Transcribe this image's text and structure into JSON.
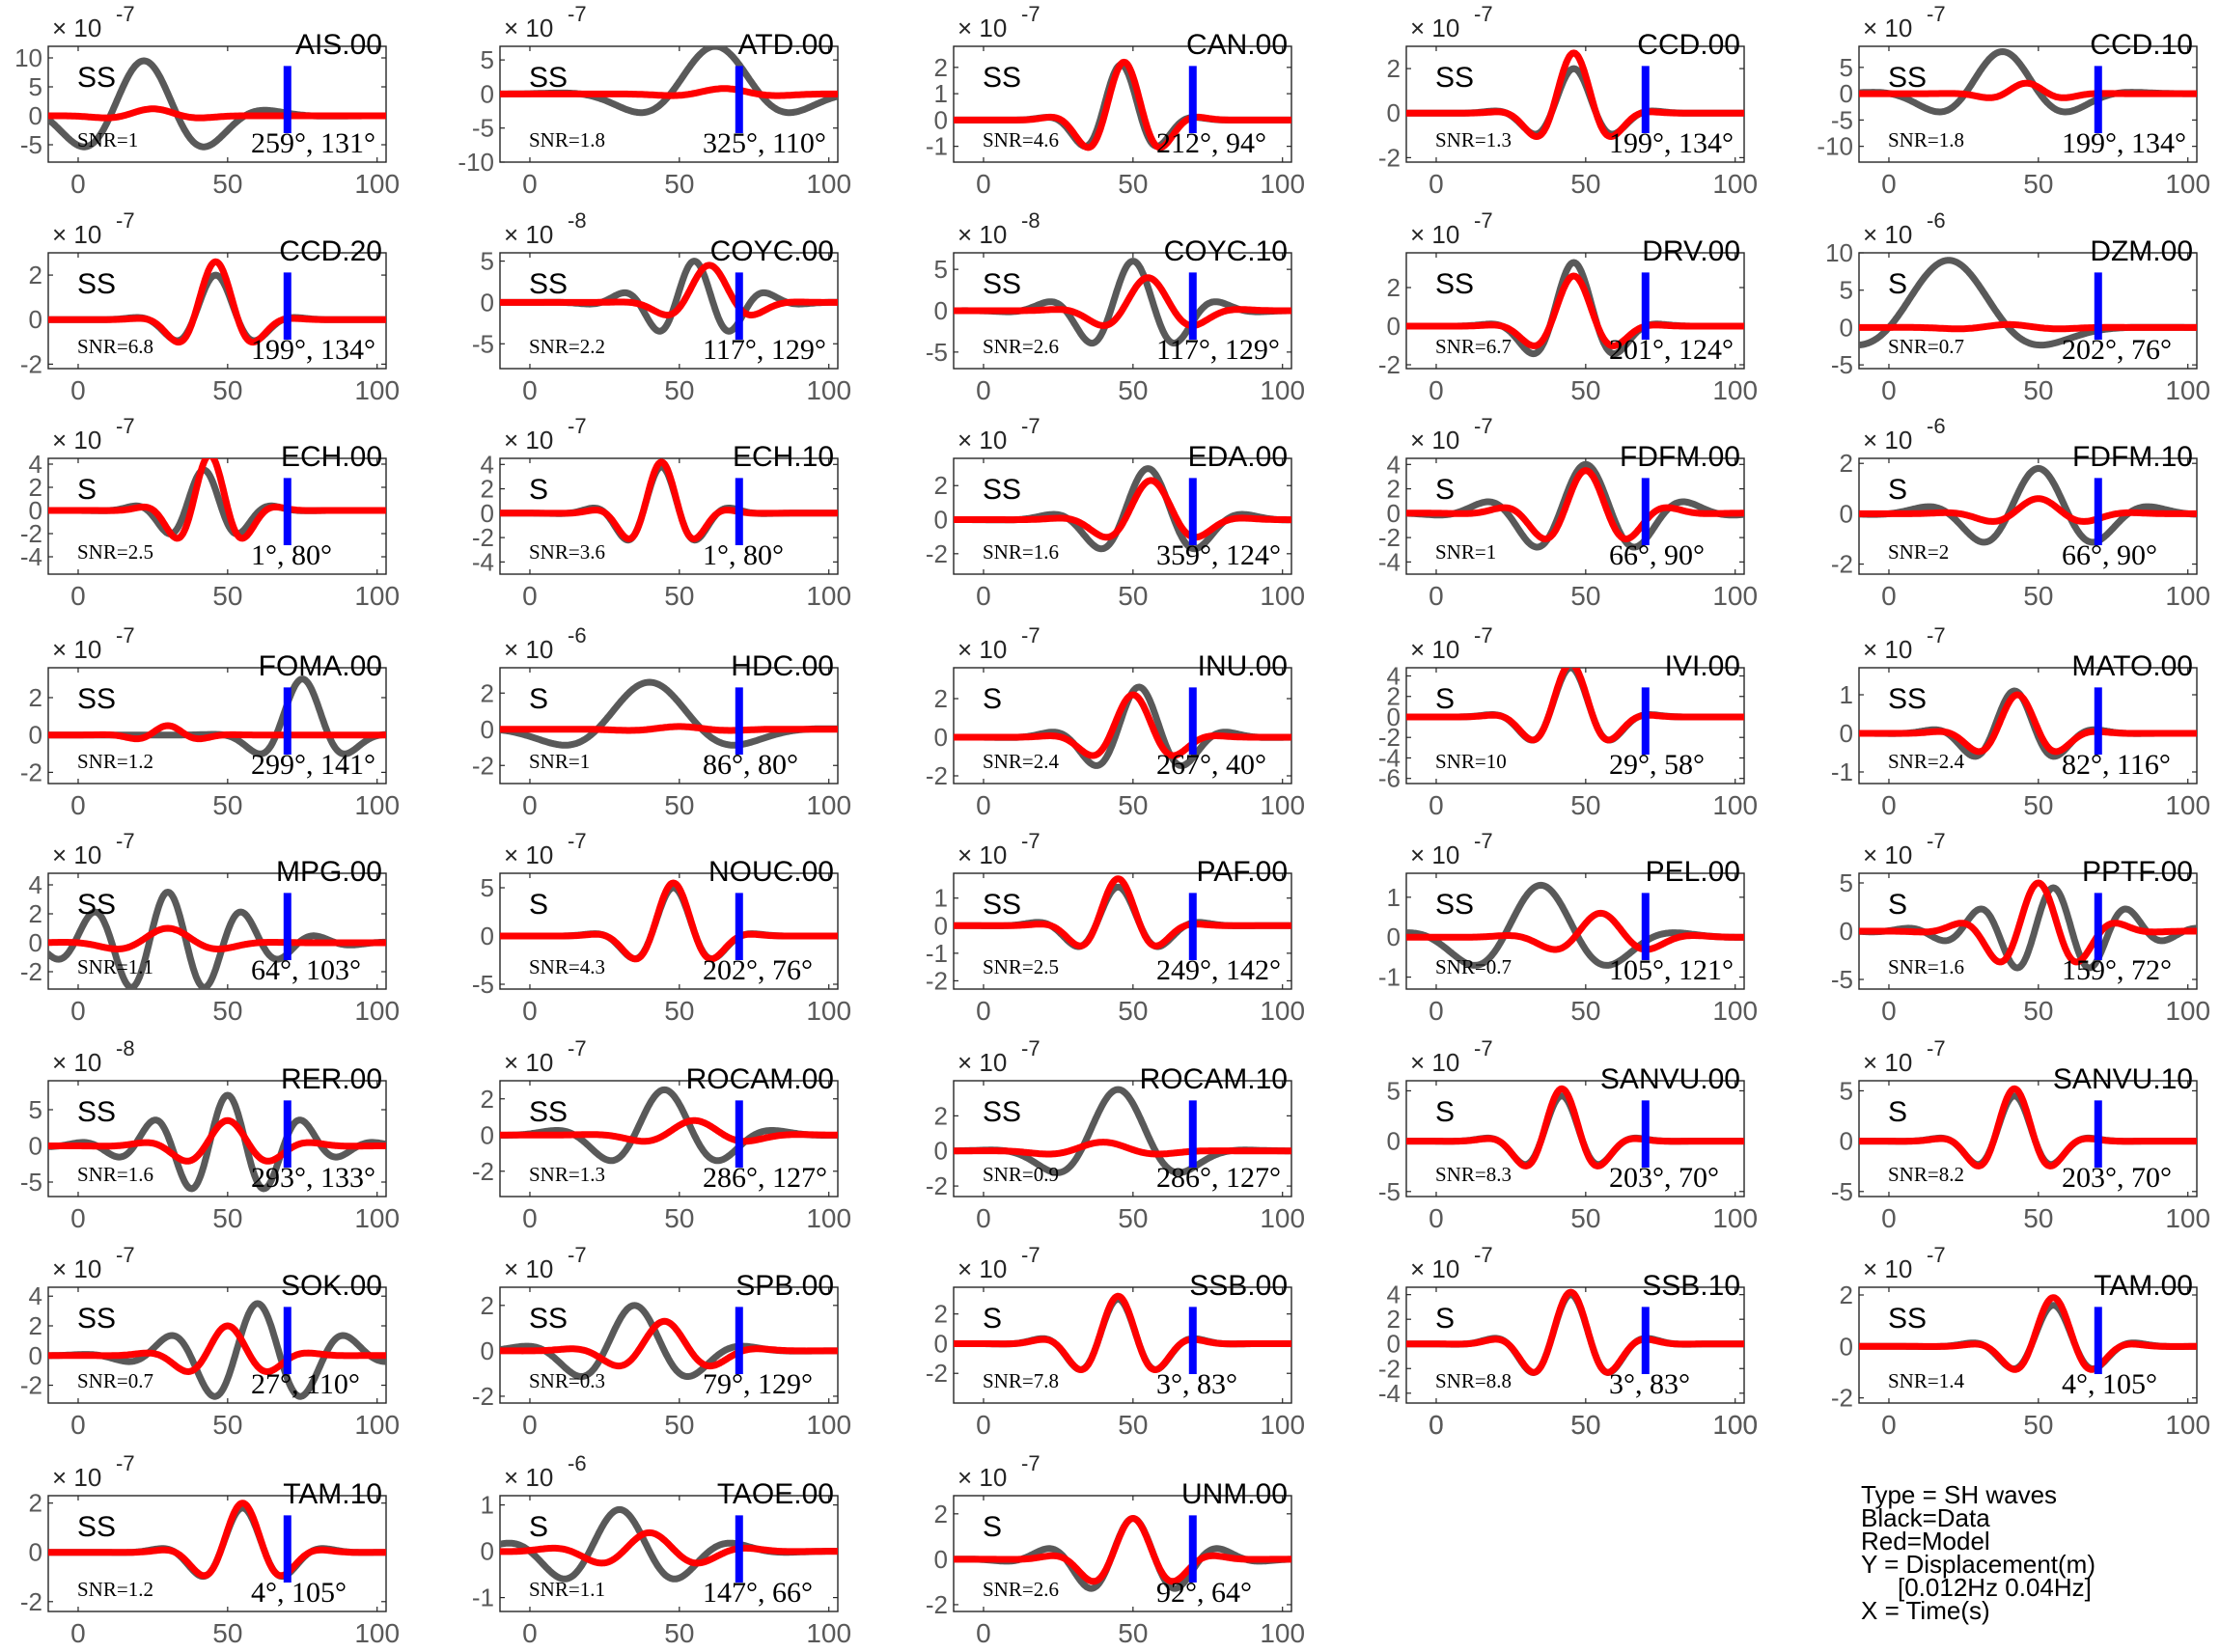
{
  "figure": {
    "x_ticks": [
      0,
      50,
      100
    ],
    "x_range": [
      -10,
      103
    ],
    "colors": {
      "data": "#595959",
      "model": "#ff0000",
      "marker": "#0000ff",
      "axis": "#262626",
      "tick_text": "#595959"
    }
  },
  "legend": {
    "lines": [
      "Type = SH waves",
      "Black=Data",
      "Red=Model",
      "Y = Displacement(m)",
      "[0.012Hz 0.04Hz]",
      "X = Time(s)"
    ]
  },
  "chart_data": [
    {
      "type": "line",
      "station": "AIS.00",
      "phase": "SS",
      "snr": "SNR=1",
      "azimuth": "259°, 131°",
      "scale_exp": "-7",
      "ylim": [
        -8,
        12
      ],
      "yticks": [
        -5,
        0,
        5,
        10
      ],
      "marker_x": 70,
      "data_amp": 9.5,
      "data_center": 22,
      "data_period": 45,
      "data_width": 28,
      "model_amp": 1.2,
      "model_center": 25,
      "model_period": 40,
      "model_width": 16
    },
    {
      "type": "line",
      "station": "ATD.00",
      "phase": "SS",
      "snr": "SNR=1.8",
      "azimuth": "325°, 110°",
      "scale_exp": "-7",
      "ylim": [
        -10,
        7
      ],
      "yticks": [
        -10,
        -5,
        0,
        5
      ],
      "marker_x": 70,
      "data_amp": 7,
      "data_center": 62,
      "data_period": 60,
      "data_width": 28,
      "model_amp": 0.8,
      "model_center": 65,
      "model_period": 45,
      "model_width": 18
    },
    {
      "type": "line",
      "station": "CAN.00",
      "phase": "SS",
      "snr": "SNR=4.6",
      "azimuth": "212°, 94°",
      "scale_exp": "-7",
      "ylim": [
        -1.6,
        2.8
      ],
      "yticks": [
        -1,
        0,
        1,
        2
      ],
      "marker_x": 70,
      "data_amp": 2.1,
      "data_center": 46,
      "data_period": 28,
      "data_width": 15,
      "model_amp": 2.2,
      "model_center": 47,
      "model_period": 28,
      "model_width": 15
    },
    {
      "type": "line",
      "station": "CCD.00",
      "phase": "SS",
      "snr": "SNR=1.3",
      "azimuth": "199°, 134°",
      "scale_exp": "-7",
      "ylim": [
        -2.2,
        3
      ],
      "yticks": [
        -2,
        0,
        2
      ],
      "marker_x": 70,
      "data_amp": 2,
      "data_center": 46,
      "data_period": 30,
      "data_width": 16,
      "model_amp": 2.7,
      "model_center": 46,
      "model_period": 30,
      "model_width": 14
    },
    {
      "type": "line",
      "station": "CCD.10",
      "phase": "SS",
      "snr": "SNR=1.8",
      "azimuth": "199°, 134°",
      "scale_exp": "-7",
      "ylim": [
        -13,
        9
      ],
      "yticks": [
        -10,
        -5,
        0,
        5
      ],
      "marker_x": 70,
      "data_amp": 8,
      "data_center": 38,
      "data_period": 50,
      "data_width": 25,
      "model_amp": 2,
      "model_center": 46,
      "model_period": 30,
      "model_width": 14
    },
    {
      "type": "line",
      "station": "CCD.20",
      "phase": "SS",
      "snr": "SNR=6.8",
      "azimuth": "199°, 134°",
      "scale_exp": "-7",
      "ylim": [
        -2.2,
        3
      ],
      "yticks": [
        -2,
        0,
        2
      ],
      "marker_x": 70,
      "data_amp": 2,
      "data_center": 46,
      "data_period": 30,
      "data_width": 16,
      "model_amp": 2.6,
      "model_center": 46,
      "model_period": 30,
      "model_width": 14
    },
    {
      "type": "line",
      "station": "COYC.00",
      "phase": "SS",
      "snr": "SNR=2.2",
      "azimuth": "117°, 129°",
      "scale_exp": "-8",
      "ylim": [
        -8,
        6
      ],
      "yticks": [
        -5,
        0,
        5
      ],
      "marker_x": 70,
      "data_amp": 5,
      "data_center": 55,
      "data_period": 25,
      "data_width": 20,
      "model_amp": 4.5,
      "model_center": 60,
      "model_period": 35,
      "model_width": 15
    },
    {
      "type": "line",
      "station": "COYC.10",
      "phase": "SS",
      "snr": "SNR=2.6",
      "azimuth": "117°, 129°",
      "scale_exp": "-8",
      "ylim": [
        -7,
        7
      ],
      "yticks": [
        -5,
        0,
        5
      ],
      "marker_x": 70,
      "data_amp": 6,
      "data_center": 50,
      "data_period": 30,
      "data_width": 22,
      "model_amp": 4,
      "model_center": 55,
      "model_period": 35,
      "model_width": 18
    },
    {
      "type": "line",
      "station": "DRV.00",
      "phase": "SS",
      "snr": "SNR=6.7",
      "azimuth": "201°, 124°",
      "scale_exp": "-7",
      "ylim": [
        -2.2,
        3.8
      ],
      "yticks": [
        -2,
        0,
        2
      ],
      "marker_x": 70,
      "data_amp": 3.3,
      "data_center": 46,
      "data_period": 32,
      "data_width": 16,
      "model_amp": 2.6,
      "model_center": 46,
      "model_period": 32,
      "model_width": 15
    },
    {
      "type": "line",
      "station": "DZM.00",
      "phase": "S",
      "snr": "SNR=0.7",
      "azimuth": "202°, 76°",
      "scale_exp": "-6",
      "ylim": [
        -5.5,
        10
      ],
      "yticks": [
        -5,
        0,
        5,
        10
      ],
      "marker_x": 70,
      "data_amp": 9,
      "data_center": 20,
      "data_period": 80,
      "data_width": 30,
      "model_amp": 0.4,
      "model_center": 40,
      "model_period": 40,
      "model_width": 20
    },
    {
      "type": "line",
      "station": "ECH.00",
      "phase": "S",
      "snr": "SNR=2.5",
      "azimuth": "1°, 80°",
      "scale_exp": "-7",
      "ylim": [
        -5.5,
        4.5
      ],
      "yticks": [
        -4,
        -2,
        0,
        2,
        4
      ],
      "marker_x": 70,
      "data_amp": 3.5,
      "data_center": 42,
      "data_period": 25,
      "data_width": 16,
      "model_amp": 4.8,
      "model_center": 44,
      "model_period": 25,
      "model_width": 14
    },
    {
      "type": "line",
      "station": "ECH.10",
      "phase": "S",
      "snr": "SNR=3.6",
      "azimuth": "1°, 80°",
      "scale_exp": "-7",
      "ylim": [
        -5,
        4.5
      ],
      "yticks": [
        -4,
        -2,
        0,
        2,
        4
      ],
      "marker_x": 70,
      "data_amp": 3.8,
      "data_center": 44,
      "data_period": 25,
      "data_width": 16,
      "model_amp": 4.2,
      "model_center": 44,
      "model_period": 25,
      "model_width": 14
    },
    {
      "type": "line",
      "station": "EDA.00",
      "phase": "SS",
      "snr": "SNR=1.6",
      "azimuth": "359°, 124°",
      "scale_exp": "-7",
      "ylim": [
        -3.2,
        3.6
      ],
      "yticks": [
        -2,
        0,
        2
      ],
      "marker_x": 70,
      "data_amp": 3,
      "data_center": 55,
      "data_period": 35,
      "data_width": 22,
      "model_amp": 2.3,
      "model_center": 56,
      "model_period": 35,
      "model_width": 18
    },
    {
      "type": "line",
      "station": "FDFM.00",
      "phase": "S",
      "snr": "SNR=1",
      "azimuth": "66°, 90°",
      "scale_exp": "-7",
      "ylim": [
        -5,
        4.5
      ],
      "yticks": [
        -4,
        -2,
        0,
        2,
        4
      ],
      "marker_x": 70,
      "data_amp": 4,
      "data_center": 50,
      "data_period": 35,
      "data_width": 28,
      "model_amp": 3.5,
      "model_center": 50,
      "model_period": 30,
      "model_width": 20
    },
    {
      "type": "line",
      "station": "FDFM.10",
      "phase": "S",
      "snr": "SNR=2",
      "azimuth": "66°, 90°",
      "scale_exp": "-6",
      "ylim": [
        -2.4,
        2.2
      ],
      "yticks": [
        -2,
        0,
        2
      ],
      "marker_x": 70,
      "data_amp": 1.8,
      "data_center": 50,
      "data_period": 40,
      "data_width": 28,
      "model_amp": 0.6,
      "model_center": 50,
      "model_period": 35,
      "model_width": 20
    },
    {
      "type": "line",
      "station": "FOMA.00",
      "phase": "SS",
      "snr": "SNR=1.2",
      "azimuth": "299°, 141°",
      "scale_exp": "-7",
      "ylim": [
        -2.6,
        3.6
      ],
      "yticks": [
        -2,
        0,
        2
      ],
      "marker_x": 70,
      "data_amp": 3,
      "data_center": 75,
      "data_period": 35,
      "data_width": 15,
      "model_amp": 0.5,
      "model_center": 30,
      "model_period": 25,
      "model_width": 12
    },
    {
      "type": "line",
      "station": "HDC.00",
      "phase": "S",
      "snr": "SNR=1",
      "azimuth": "86°, 80°",
      "scale_exp": "-6",
      "ylim": [
        -3,
        3.4
      ],
      "yticks": [
        -2,
        0,
        2
      ],
      "marker_x": 70,
      "data_amp": 2.6,
      "data_center": 40,
      "data_period": 70,
      "data_width": 30,
      "model_amp": 0.15,
      "model_center": 50,
      "model_period": 40,
      "model_width": 20
    },
    {
      "type": "line",
      "station": "INU.00",
      "phase": "S",
      "snr": "SNR=2.4",
      "azimuth": "267°, 40°",
      "scale_exp": "-7",
      "ylim": [
        -2.4,
        3.6
      ],
      "yticks": [
        -2,
        0,
        2
      ],
      "marker_x": 70,
      "data_amp": 2.6,
      "data_center": 52,
      "data_period": 32,
      "data_width": 20,
      "model_amp": 2.2,
      "model_center": 50,
      "model_period": 32,
      "model_width": 16
    },
    {
      "type": "line",
      "station": "IVI.00",
      "phase": "S",
      "snr": "SNR=10",
      "azimuth": "29°, 58°",
      "scale_exp": "-7",
      "ylim": [
        -6.5,
        4.8
      ],
      "yticks": [
        -6,
        -4,
        -2,
        0,
        2,
        4
      ],
      "marker_x": 70,
      "data_amp": 4.8,
      "data_center": 45,
      "data_period": 30,
      "data_width": 16,
      "model_amp": 5.2,
      "model_center": 45,
      "model_period": 30,
      "model_width": 15
    },
    {
      "type": "line",
      "station": "MATO.00",
      "phase": "SS",
      "snr": "SNR=2.4",
      "azimuth": "82°, 116°",
      "scale_exp": "-7",
      "ylim": [
        -1.3,
        1.7
      ],
      "yticks": [
        -1,
        0,
        1
      ],
      "marker_x": 70,
      "data_amp": 1.1,
      "data_center": 42,
      "data_period": 30,
      "data_width": 18,
      "model_amp": 1,
      "model_center": 43,
      "model_period": 30,
      "model_width": 16
    },
    {
      "type": "line",
      "station": "MPG.00",
      "phase": "SS",
      "snr": "SNR=1.1",
      "azimuth": "64°, 103°",
      "scale_exp": "-7",
      "ylim": [
        -3.2,
        4.8
      ],
      "yticks": [
        -2,
        0,
        2,
        4
      ],
      "marker_x": 70,
      "data_amp": 3.5,
      "data_center": 30,
      "data_period": 25,
      "data_width": 35,
      "model_amp": 1,
      "model_center": 30,
      "model_period": 40,
      "model_width": 20
    },
    {
      "type": "line",
      "station": "NOUC.00",
      "phase": "S",
      "snr": "SNR=4.3",
      "azimuth": "202°, 76°",
      "scale_exp": "-7",
      "ylim": [
        -5.5,
        6.5
      ],
      "yticks": [
        -5,
        0,
        5
      ],
      "marker_x": 70,
      "data_amp": 5,
      "data_center": 48,
      "data_period": 30,
      "data_width": 16,
      "model_amp": 5.5,
      "model_center": 48,
      "model_period": 30,
      "model_width": 15
    },
    {
      "type": "line",
      "station": "PAF.00",
      "phase": "SS",
      "snr": "SNR=2.5",
      "azimuth": "249°, 142°",
      "scale_exp": "-7",
      "ylim": [
        -2.3,
        1.9
      ],
      "yticks": [
        -2,
        -1,
        0,
        1
      ],
      "marker_x": 70,
      "data_amp": 1.4,
      "data_center": 45,
      "data_period": 30,
      "data_width": 18,
      "model_amp": 1.7,
      "model_center": 45,
      "model_period": 30,
      "model_width": 15
    },
    {
      "type": "line",
      "station": "PEL.00",
      "phase": "SS",
      "snr": "SNR=0.7",
      "azimuth": "105°, 121°",
      "scale_exp": "-7",
      "ylim": [
        -1.3,
        1.6
      ],
      "yticks": [
        -1,
        0,
        1
      ],
      "marker_x": 70,
      "data_amp": 1.3,
      "data_center": 35,
      "data_period": 50,
      "data_width": 30,
      "model_amp": 0.6,
      "model_center": 55,
      "model_period": 35,
      "model_width": 20
    },
    {
      "type": "line",
      "station": "PPTF.00",
      "phase": "S",
      "snr": "SNR=1.6",
      "azimuth": "159°, 72°",
      "scale_exp": "-7",
      "ylim": [
        -6,
        6
      ],
      "yticks": [
        -5,
        0,
        5
      ],
      "marker_x": 70,
      "data_amp": 4.5,
      "data_center": 55,
      "data_period": 25,
      "data_width": 30,
      "model_amp": 5,
      "model_center": 50,
      "model_period": 28,
      "model_width": 20
    },
    {
      "type": "line",
      "station": "RER.00",
      "phase": "SS",
      "snr": "SNR=1.6",
      "azimuth": "293°, 133°",
      "scale_exp": "-8",
      "ylim": [
        -7,
        9
      ],
      "yticks": [
        -5,
        0,
        5
      ],
      "marker_x": 70,
      "data_amp": 7,
      "data_center": 50,
      "data_period": 25,
      "data_width": 30,
      "model_amp": 3.5,
      "model_center": 50,
      "model_period": 30,
      "model_width": 20
    },
    {
      "type": "line",
      "station": "ROCAM.00",
      "phase": "SS",
      "snr": "SNR=1.3",
      "azimuth": "286°, 127°",
      "scale_exp": "-7",
      "ylim": [
        -3.4,
        3
      ],
      "yticks": [
        -2,
        0,
        2
      ],
      "marker_x": 70,
      "data_amp": 2.5,
      "data_center": 45,
      "data_period": 40,
      "data_width": 25,
      "model_amp": 0.8,
      "model_center": 55,
      "model_period": 40,
      "model_width": 20
    },
    {
      "type": "line",
      "station": "ROCAM.10",
      "phase": "SS",
      "snr": "SNR=0.9",
      "azimuth": "286°, 127°",
      "scale_exp": "-7",
      "ylim": [
        -2.6,
        4
      ],
      "yticks": [
        -2,
        0,
        2
      ],
      "marker_x": 70,
      "data_amp": 3.5,
      "data_center": 45,
      "data_period": 50,
      "data_width": 22,
      "model_amp": 0.5,
      "model_center": 40,
      "model_period": 45,
      "model_width": 20
    },
    {
      "type": "line",
      "station": "SANVU.00",
      "phase": "S",
      "snr": "SNR=8.3",
      "azimuth": "203°, 70°",
      "scale_exp": "-7",
      "ylim": [
        -5.5,
        6
      ],
      "yticks": [
        -5,
        0,
        5
      ],
      "marker_x": 70,
      "data_amp": 4.5,
      "data_center": 42,
      "data_period": 28,
      "data_width": 16,
      "model_amp": 5.2,
      "model_center": 42,
      "model_period": 28,
      "model_width": 15
    },
    {
      "type": "line",
      "station": "SANVU.10",
      "phase": "S",
      "snr": "SNR=8.2",
      "azimuth": "203°, 70°",
      "scale_exp": "-7",
      "ylim": [
        -5.5,
        6
      ],
      "yticks": [
        -5,
        0,
        5
      ],
      "marker_x": 70,
      "data_amp": 4.5,
      "data_center": 42,
      "data_period": 28,
      "data_width": 16,
      "model_amp": 5.2,
      "model_center": 42,
      "model_period": 28,
      "model_width": 15
    },
    {
      "type": "line",
      "station": "SOK.00",
      "phase": "SS",
      "snr": "SNR=0.7",
      "azimuth": "27°, 110°",
      "scale_exp": "-7",
      "ylim": [
        -3.2,
        4.6
      ],
      "yticks": [
        -2,
        0,
        2,
        4
      ],
      "marker_x": 70,
      "data_amp": 3.5,
      "data_center": 60,
      "data_period": 30,
      "data_width": 30,
      "model_amp": 2,
      "model_center": 50,
      "model_period": 30,
      "model_width": 18
    },
    {
      "type": "line",
      "station": "SPB.00",
      "phase": "SS",
      "snr": "SNR=0.3",
      "azimuth": "79°, 129°",
      "scale_exp": "-7",
      "ylim": [
        -2.3,
        2.8
      ],
      "yticks": [
        -2,
        0,
        2
      ],
      "marker_x": 70,
      "data_amp": 2,
      "data_center": 35,
      "data_period": 40,
      "data_width": 25,
      "model_amp": 1.3,
      "model_center": 45,
      "model_period": 35,
      "model_width": 20
    },
    {
      "type": "line",
      "station": "SSB.00",
      "phase": "S",
      "snr": "SNR=7.8",
      "azimuth": "3°, 83°",
      "scale_exp": "-7",
      "ylim": [
        -4,
        3.8
      ],
      "yticks": [
        -2,
        0,
        2
      ],
      "marker_x": 70,
      "data_amp": 3,
      "data_center": 45,
      "data_period": 28,
      "data_width": 18,
      "model_amp": 3.2,
      "model_center": 45,
      "model_period": 28,
      "model_width": 17
    },
    {
      "type": "line",
      "station": "SSB.10",
      "phase": "S",
      "snr": "SNR=8.8",
      "azimuth": "3°, 83°",
      "scale_exp": "-7",
      "ylim": [
        -4.8,
        4.6
      ],
      "yticks": [
        -4,
        -2,
        0,
        2,
        4
      ],
      "marker_x": 70,
      "data_amp": 4,
      "data_center": 45,
      "data_period": 28,
      "data_width": 18,
      "model_amp": 4.2,
      "model_center": 45,
      "model_period": 28,
      "model_width": 17
    },
    {
      "type": "line",
      "station": "TAM.00",
      "phase": "SS",
      "snr": "SNR=1.4",
      "azimuth": "4°, 105°",
      "scale_exp": "-7",
      "ylim": [
        -2.2,
        2.3
      ],
      "yticks": [
        -2,
        0,
        2
      ],
      "marker_x": 70,
      "data_amp": 1.6,
      "data_center": 55,
      "data_period": 30,
      "data_width": 18,
      "model_amp": 1.9,
      "model_center": 55,
      "model_period": 30,
      "model_width": 16
    },
    {
      "type": "line",
      "station": "TAM.10",
      "phase": "SS",
      "snr": "SNR=1.2",
      "azimuth": "4°, 105°",
      "scale_exp": "-7",
      "ylim": [
        -2.4,
        2.3
      ],
      "yticks": [
        -2,
        0,
        2
      ],
      "marker_x": 70,
      "data_amp": 1.8,
      "data_center": 55,
      "data_period": 30,
      "data_width": 18,
      "model_amp": 2,
      "model_center": 55,
      "model_period": 30,
      "model_width": 16
    },
    {
      "type": "line",
      "station": "TAOE.00",
      "phase": "S",
      "snr": "SNR=1.1",
      "azimuth": "147°, 66°",
      "scale_exp": "-6",
      "ylim": [
        -1.3,
        1.2
      ],
      "yticks": [
        -1,
        0,
        1
      ],
      "marker_x": 70,
      "data_amp": 0.9,
      "data_center": 30,
      "data_period": 40,
      "data_width": 30,
      "model_amp": 0.4,
      "model_center": 40,
      "model_period": 35,
      "model_width": 25
    },
    {
      "type": "line",
      "station": "UNM.00",
      "phase": "S",
      "snr": "SNR=2.6",
      "azimuth": "92°, 64°",
      "scale_exp": "-7",
      "ylim": [
        -2.3,
        2.8
      ],
      "yticks": [
        -2,
        0,
        2
      ],
      "marker_x": 70,
      "data_amp": 1.8,
      "data_center": 50,
      "data_period": 30,
      "data_width": 25,
      "model_amp": 1.8,
      "model_center": 50,
      "model_period": 30,
      "model_width": 18
    }
  ]
}
